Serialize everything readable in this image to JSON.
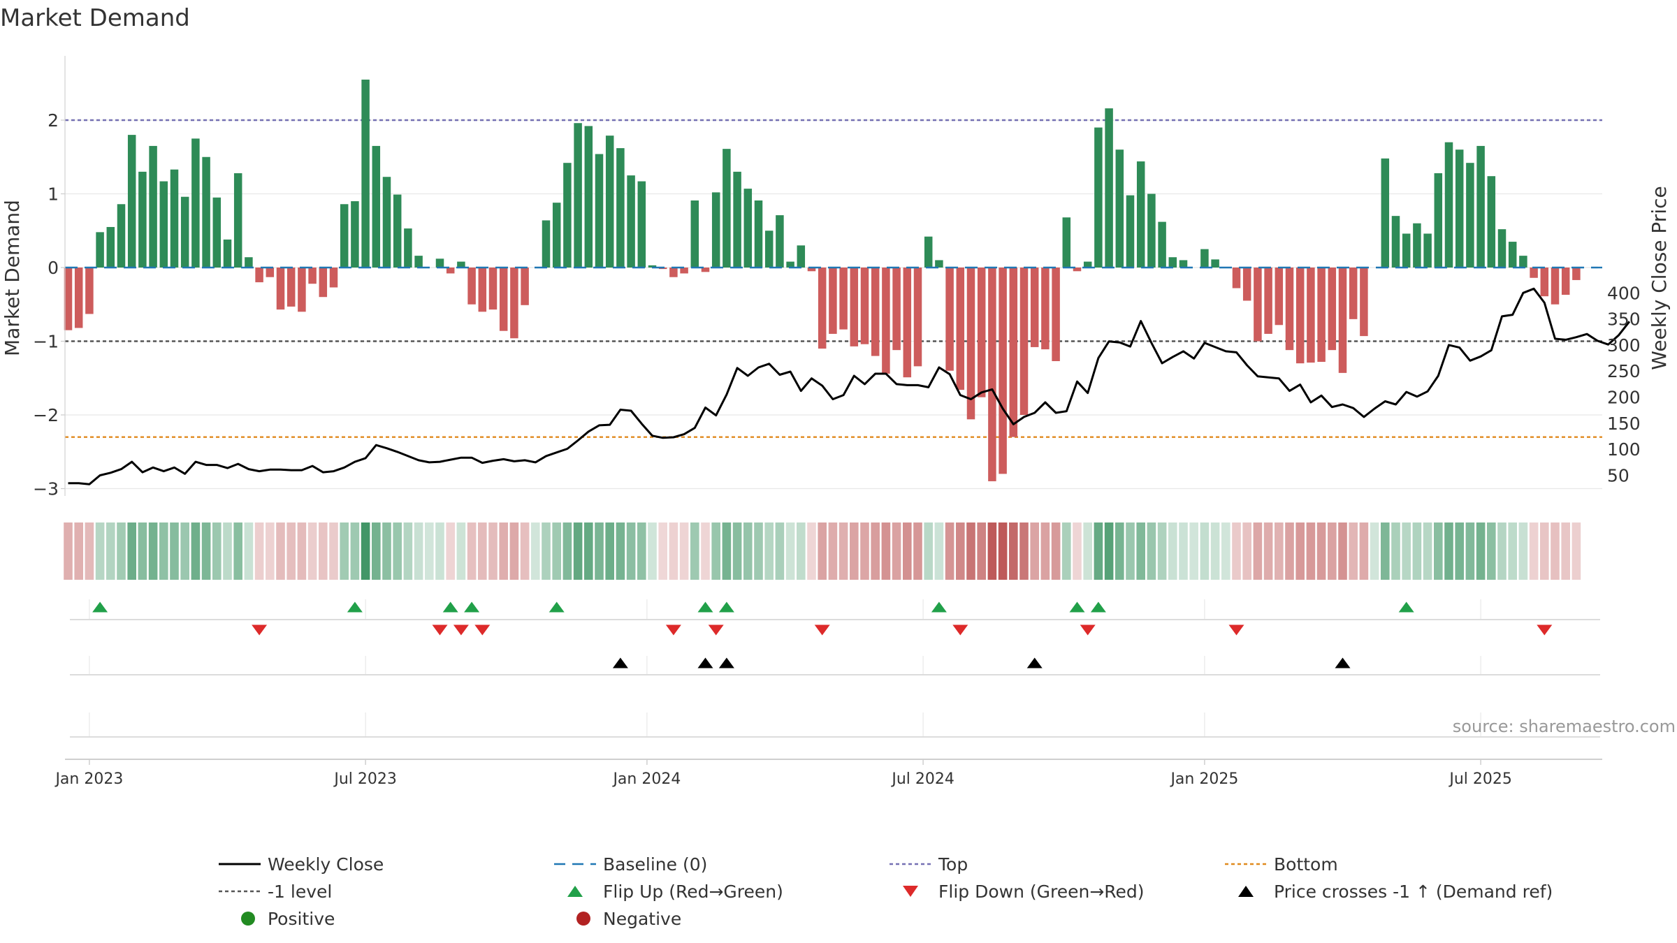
{
  "chart_data": {
    "type": "bar+line",
    "title": "Market Demand",
    "ylabel_left": "Market Demand",
    "ylabel_right": "Weekly Close Price",
    "ylim_left": [
      -3.3,
      2.85
    ],
    "ylim_right": [
      5,
      435
    ],
    "yticks_left": [
      {
        "value": -3,
        "label": "−3"
      },
      {
        "value": -2,
        "label": "−2"
      },
      {
        "value": -1,
        "label": "−1"
      },
      {
        "value": 0,
        "label": "0"
      },
      {
        "value": 1,
        "label": "1"
      },
      {
        "value": 2,
        "label": "2"
      }
    ],
    "yticks_right": [
      {
        "value": 50,
        "label": "50"
      },
      {
        "value": 100,
        "label": "100"
      },
      {
        "value": 150,
        "label": "150"
      },
      {
        "value": 200,
        "label": "200"
      },
      {
        "value": 250,
        "label": "250"
      },
      {
        "value": 300,
        "label": "300"
      },
      {
        "value": 350,
        "label": "350"
      },
      {
        "value": 400,
        "label": "400"
      }
    ],
    "xticks": [
      {
        "index": 2,
        "label": "Jan 2023"
      },
      {
        "index": 28,
        "label": "Jul 2023"
      },
      {
        "index": 54.5,
        "label": "Jan 2024"
      },
      {
        "index": 80.5,
        "label": "Jul 2024"
      },
      {
        "index": 107,
        "label": "Jan 2025"
      },
      {
        "index": 133,
        "label": "Jul 2025"
      }
    ],
    "levels": {
      "top": 2.0,
      "minus_one": -1.0,
      "bottom": -2.3,
      "baseline": 0
    },
    "demand": [
      -0.85,
      -0.82,
      -0.63,
      0.48,
      0.55,
      0.86,
      1.8,
      1.3,
      1.65,
      1.17,
      1.33,
      0.96,
      1.75,
      1.5,
      0.95,
      0.38,
      1.28,
      0.14,
      -0.2,
      -0.13,
      -0.57,
      -0.53,
      -0.6,
      -0.22,
      -0.4,
      -0.27,
      0.86,
      0.9,
      2.55,
      1.65,
      1.23,
      0.99,
      0.53,
      0.16,
      0.0,
      0.12,
      -0.08,
      0.08,
      -0.5,
      -0.6,
      -0.57,
      -0.86,
      -0.96,
      -0.51,
      0.0,
      0.64,
      0.88,
      1.42,
      1.96,
      1.92,
      1.54,
      1.79,
      1.62,
      1.25,
      1.17,
      0.03,
      -0.02,
      -0.13,
      -0.08,
      0.91,
      -0.06,
      1.02,
      1.61,
      1.3,
      1.07,
      0.91,
      0.5,
      0.71,
      0.08,
      0.3,
      -0.05,
      -1.1,
      -0.9,
      -0.84,
      -1.07,
      -1.04,
      -1.2,
      -1.44,
      -1.12,
      -1.49,
      -1.34,
      0.42,
      0.1,
      -1.4,
      -1.66,
      -2.06,
      -1.76,
      -2.9,
      -2.8,
      -2.3,
      -2.0,
      -1.08,
      -1.11,
      -1.27,
      0.68,
      -0.05,
      0.08,
      1.9,
      2.16,
      1.6,
      0.98,
      1.44,
      1.0,
      0.62,
      0.14,
      0.1,
      0.0,
      0.25,
      0.11,
      0.0,
      -0.28,
      -0.45,
      -1.0,
      -0.9,
      -0.78,
      -1.12,
      -1.3,
      -1.29,
      -1.28,
      -1.12,
      -1.43,
      -0.7,
      -0.93,
      0.0,
      1.48,
      0.7,
      0.46,
      0.6,
      0.46,
      1.28,
      1.7,
      1.6,
      1.42,
      1.65,
      1.24,
      0.52,
      0.35,
      0.16,
      -0.14,
      -0.39,
      -0.5,
      -0.37,
      -0.17
    ],
    "close": [
      35,
      35,
      33,
      50,
      55,
      62,
      76,
      56,
      65,
      58,
      65,
      53,
      76,
      70,
      70,
      64,
      72,
      62,
      58,
      61,
      61,
      60,
      60,
      68,
      56,
      58,
      65,
      76,
      83,
      108,
      102,
      95,
      87,
      79,
      75,
      76,
      80,
      84,
      84,
      74,
      78,
      81,
      77,
      79,
      75,
      87,
      94,
      101,
      117,
      134,
      146,
      147,
      176,
      174,
      149,
      126,
      122,
      123,
      129,
      141,
      180,
      165,
      205,
      256,
      241,
      257,
      264,
      243,
      249,
      212,
      236,
      222,
      196,
      204,
      241,
      225,
      245,
      245,
      225,
      223,
      223,
      219,
      257,
      244,
      204,
      196,
      209,
      215,
      178,
      148,
      162,
      170,
      190,
      170,
      173,
      230,
      208,
      275,
      307,
      305,
      297,
      346,
      304,
      265,
      277,
      288,
      274,
      304,
      296,
      288,
      286,
      261,
      240,
      238,
      236,
      212,
      224,
      190,
      203,
      181,
      186,
      179,
      162,
      178,
      192,
      186,
      210,
      201,
      211,
      241,
      300,
      295,
      270,
      278,
      290,
      355,
      358,
      400,
      408,
      381,
      312,
      310,
      315,
      321,
      308,
      301,
      319,
      345
    ],
    "bar_colors": {
      "positive": "#2e8b57",
      "negative": "#cd5c5c"
    },
    "series_colors": {
      "weekly_close": "#000000",
      "baseline": "#1f77b4",
      "top": "#7570b3",
      "minus_one": "#555555",
      "bottom": "#e08a1e",
      "flip_up": "#21a049",
      "flip_down": "#dd2a2a",
      "price_cross": "#000000",
      "heat_positive": "#2e8b57",
      "heat_negative": "#b84c4c"
    },
    "flip_up_weeks": [
      3,
      27,
      36,
      38,
      46,
      60,
      62,
      82,
      95,
      97,
      126
    ],
    "flip_down_weeks": [
      18,
      35,
      37,
      39,
      57,
      61,
      71,
      84,
      96,
      110,
      139
    ],
    "price_cross_weeks": [
      52,
      60,
      62,
      91,
      120
    ],
    "annotation": "source: sharemaestro.com",
    "legend": [
      {
        "key": "weekly_close",
        "label": "Weekly Close",
        "marker": "line"
      },
      {
        "key": "baseline",
        "label": "Baseline (0)",
        "marker": "dashed"
      },
      {
        "key": "top",
        "label": "Top",
        "marker": "dotted"
      },
      {
        "key": "bottom",
        "label": "Bottom",
        "marker": "dotted"
      },
      {
        "key": "minus_one",
        "label": "-1 level",
        "marker": "dotted"
      },
      {
        "key": "flip_up",
        "label": "Flip Up (Red→Green)",
        "marker": "triangle-up"
      },
      {
        "key": "flip_down",
        "label": "Flip Down (Green→Red)",
        "marker": "triangle-down"
      },
      {
        "key": "price_cross",
        "label": "Price crosses -1 ↑ (Demand ref)",
        "marker": "triangle-up"
      },
      {
        "key": "positive",
        "label": "Positive",
        "marker": "circle",
        "color": "#228b22"
      },
      {
        "key": "negative",
        "label": "Negative",
        "marker": "circle",
        "color": "#b22222"
      }
    ]
  }
}
